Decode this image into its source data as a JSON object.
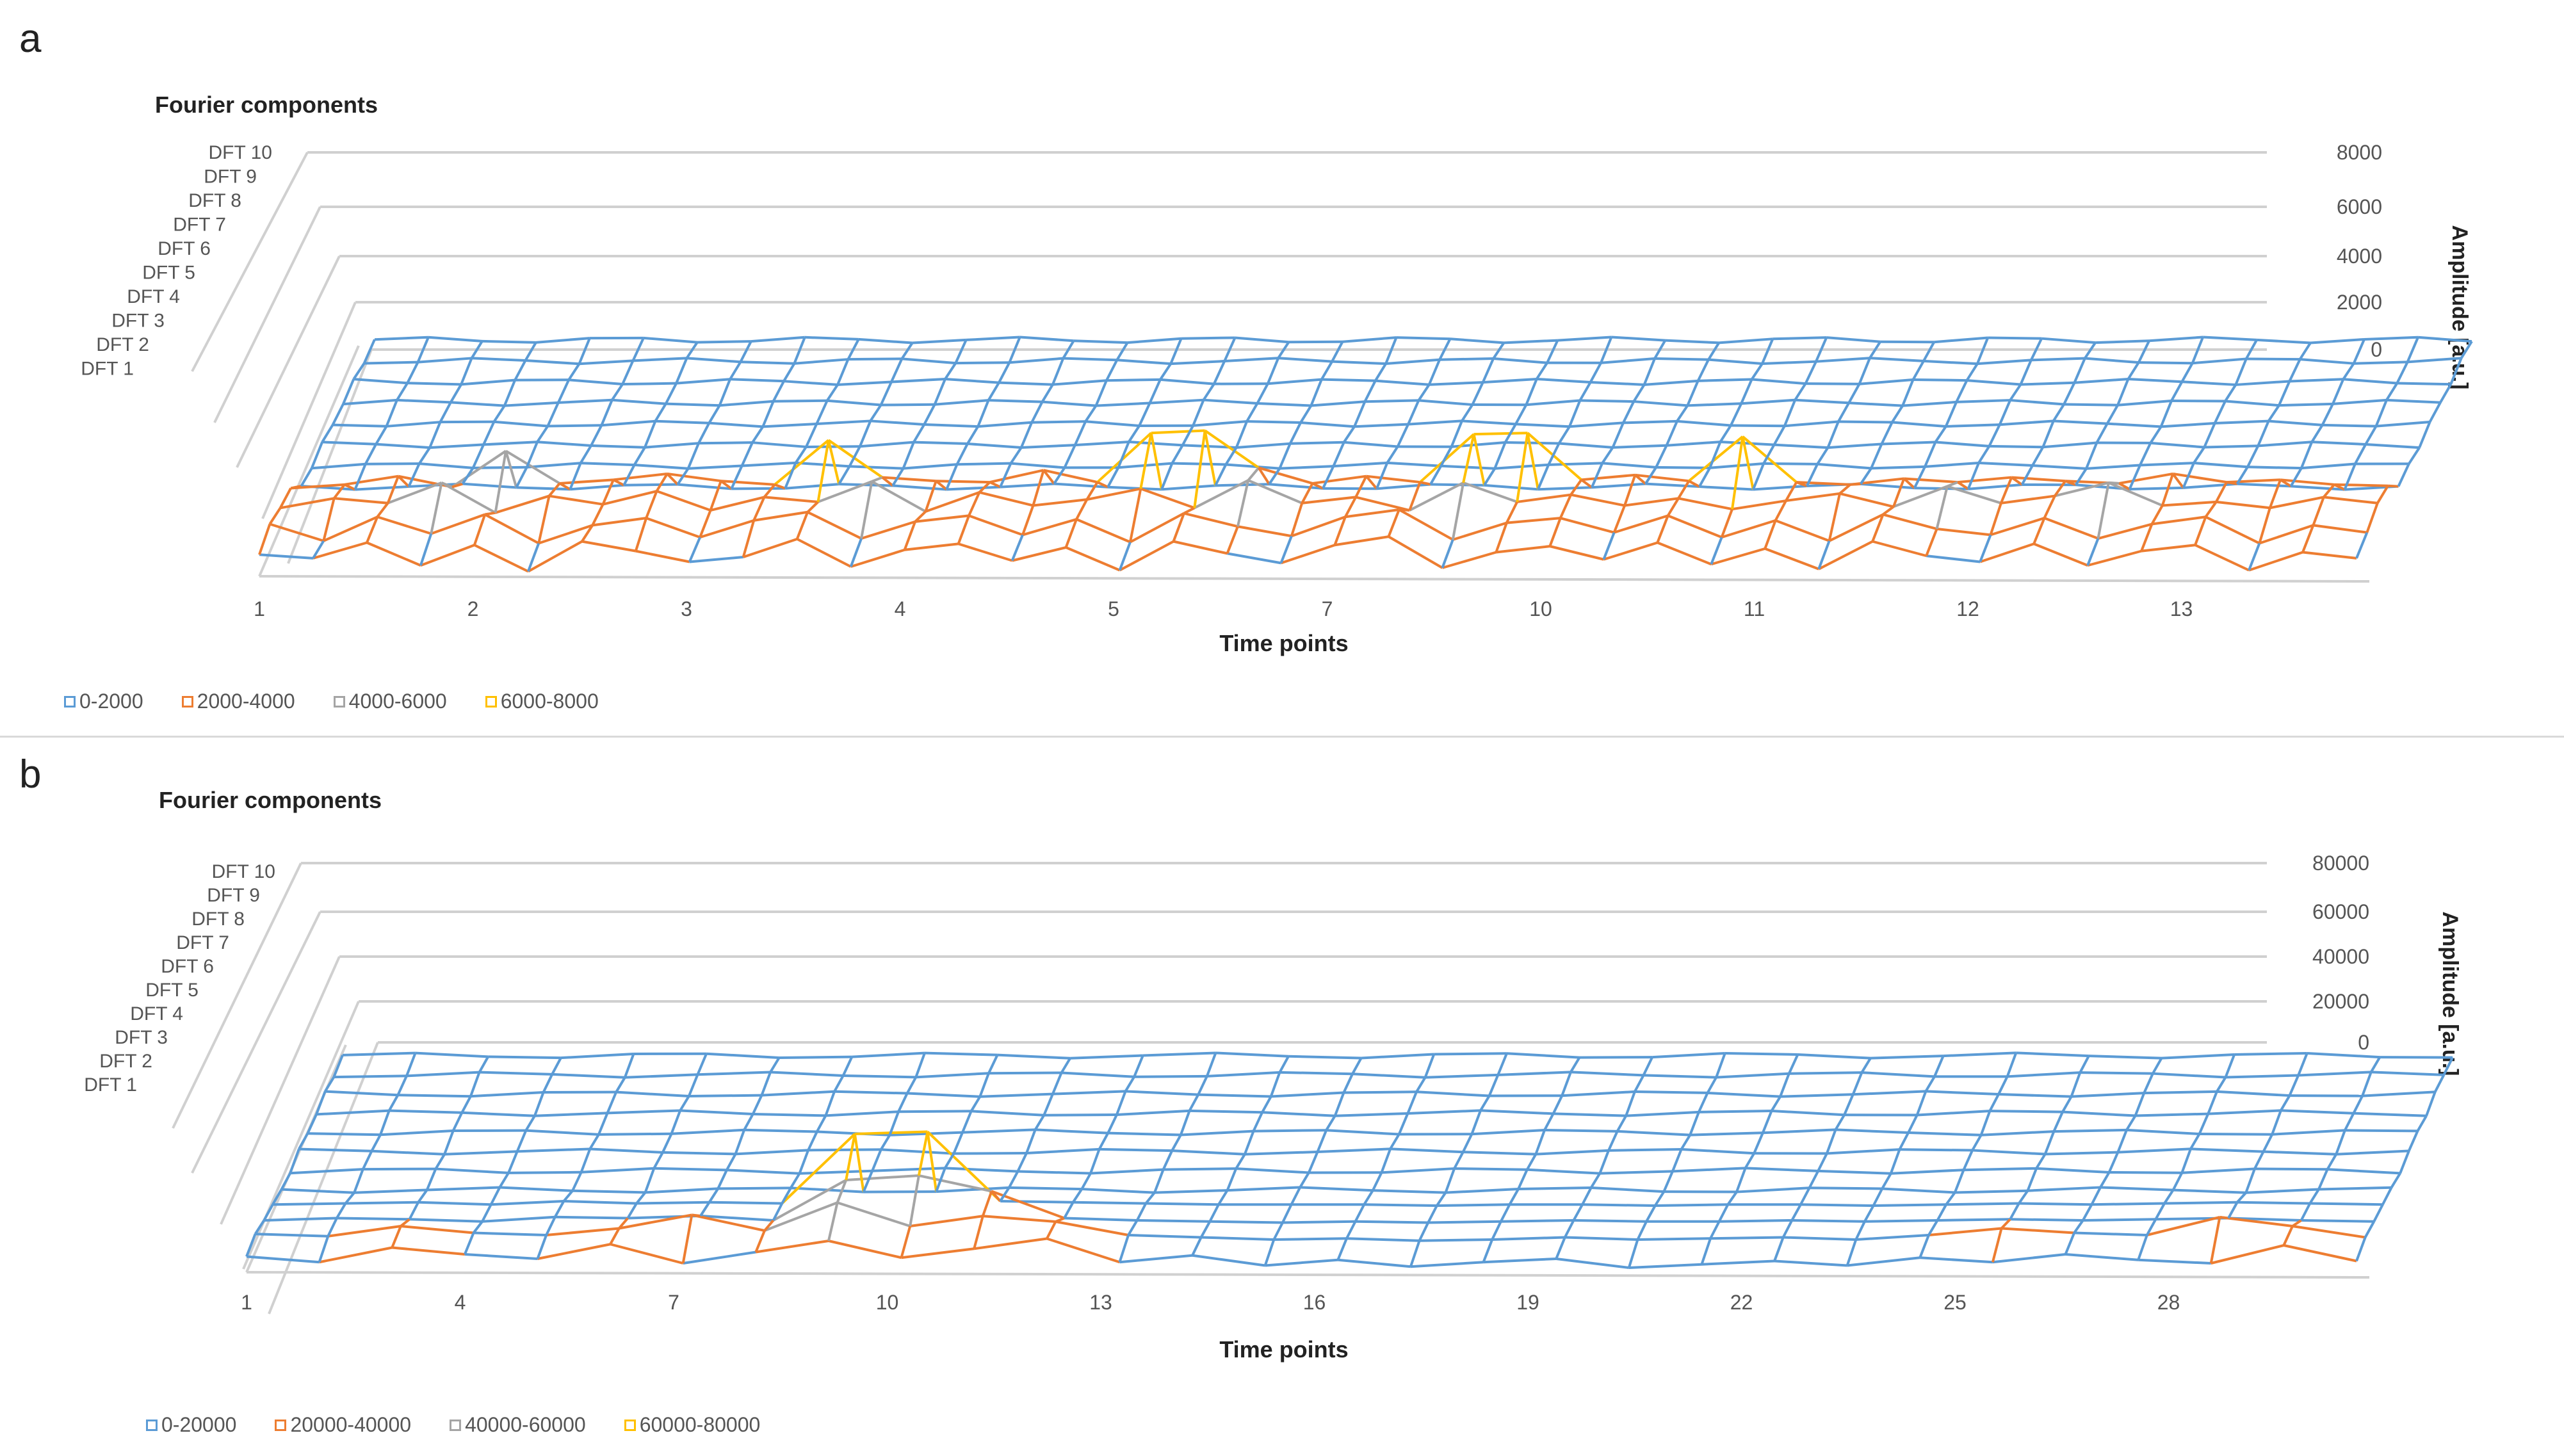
{
  "panels": [
    {
      "letter": "a"
    },
    {
      "letter": "b"
    }
  ],
  "chart_data": [
    {
      "type": "surface",
      "title": "Fourier components",
      "xlabel": "Time points",
      "zlabel": "Amplitude [a.u.]",
      "x_tick_labels": [
        "1",
        "2",
        "3",
        "4",
        "5",
        "7",
        "10",
        "11",
        "12",
        "13"
      ],
      "y_categories": [
        "DFT 10",
        "DFT 9",
        "DFT 8",
        "DFT 7",
        "DFT 6",
        "DFT 5",
        "DFT 4",
        "DFT 3",
        "DFT 2",
        "DFT 1"
      ],
      "z_tick_labels": [
        "8000",
        "6000",
        "4000",
        "2000",
        "0"
      ],
      "zlim": [
        0,
        8000
      ],
      "n_time_points": 40,
      "legend": [
        "0-2000",
        "2000-4000",
        "4000-6000",
        "6000-8000"
      ],
      "band_colors": [
        "#5b9bd5",
        "#ed7d31",
        "#a5a5a5",
        "#ffc000"
      ],
      "dft1_values": [
        1800,
        1500,
        2800,
        900,
        2600,
        400,
        2900,
        2100,
        1200,
        1600,
        3100,
        800,
        2200,
        2700,
        1300,
        2400,
        500,
        2900,
        1900,
        1100,
        2600,
        3300,
        700,
        2000,
        2500,
        1400,
        2800,
        1000,
        2300,
        600,
        2900,
        1700,
        1200,
        2700,
        900,
        2100,
        2600,
        500,
        2000,
        1500
      ],
      "dft2_values": [
        2600,
        1200,
        3200,
        1800,
        3400,
        1000,
        2500,
        3100,
        1500,
        2900,
        3600,
        1400,
        2800,
        3300,
        1700,
        3000,
        1100,
        3500,
        2400,
        1600,
        3200,
        3800,
        1300,
        2700,
        3100,
        1900,
        3300,
        1500,
        2900,
        1200,
        3400,
        2200,
        1700,
        3100,
        1400,
        2600,
        3200,
        1000,
        2500,
        1900
      ],
      "dft3_values": [
        2200,
        3000,
        2600,
        4300,
        1800,
        3200,
        2500,
        3600,
        2000,
        3100,
        2700,
        4400,
        1900,
        3500,
        2400,
        2900,
        3800,
        2200,
        4500,
        2600,
        3100,
        2000,
        4300,
        2700,
        3300,
        2400,
        3000,
        2100,
        2800,
        3400,
        2300,
        4000,
        2600,
        3200,
        4300,
        2400,
        2700,
        2200,
        3100,
        2600
      ],
      "peak_values": [
        2100,
        2400,
        3100,
        2200,
        5200,
        2500,
        2800,
        3300,
        2700,
        2400,
        6100,
        3000,
        2700,
        2600,
        3600,
        2600,
        6700,
        6900,
        3800,
        2500,
        3100,
        2600,
        6600,
        6700,
        2800,
        3200,
        2700,
        6400,
        2600,
        2400,
        2900,
        2600,
        3000,
        2700,
        2500,
        3300,
        2600,
        2800,
        2400,
        2300
      ]
    },
    {
      "type": "surface",
      "title": "Fourier components",
      "xlabel": "Time points",
      "zlabel": "Amplitude [a.u.]",
      "x_tick_labels": [
        "1",
        "4",
        "7",
        "10",
        "13",
        "16",
        "19",
        "22",
        "25",
        "28"
      ],
      "y_categories": [
        "DFT 10",
        "DFT 9",
        "DFT 8",
        "DFT 7",
        "DFT 6",
        "DFT 5",
        "DFT 4",
        "DFT 3",
        "DFT 2",
        "DFT 1"
      ],
      "z_tick_labels": [
        "80000",
        "60000",
        "40000",
        "20000",
        "0"
      ],
      "zlim": [
        0,
        80000
      ],
      "n_time_points": 30,
      "legend": [
        "0-20000",
        "20000-40000",
        "40000-60000",
        "60000-80000"
      ],
      "band_colors": [
        "#5b9bd5",
        "#ed7d31",
        "#a5a5a5",
        "#ffc000"
      ],
      "dft1_values": [
        14000,
        9000,
        22000,
        16000,
        12000,
        25000,
        8000,
        18000,
        28000,
        13000,
        21000,
        30000,
        9000,
        15000,
        6000,
        11000,
        5000,
        9000,
        12000,
        4000,
        7000,
        10000,
        6000,
        13000,
        9000,
        16000,
        11000,
        8000,
        24000,
        10000
      ],
      "dft2_values": [
        17000,
        15000,
        24000,
        18000,
        16000,
        22000,
        34000,
        20000,
        45000,
        24000,
        33000,
        28000,
        16000,
        14000,
        12000,
        13000,
        11000,
        12000,
        14000,
        12000,
        13000,
        14000,
        12000,
        16000,
        22000,
        18000,
        16000,
        32000,
        24000,
        14000
      ],
      "dft3_values": [
        12000,
        14000,
        13000,
        11000,
        15000,
        14000,
        16000,
        12000,
        48000,
        52000,
        38000,
        14000,
        12000,
        11000,
        10000,
        11000,
        10000,
        11000,
        12000,
        11000,
        11000,
        12000,
        11000,
        12000,
        13000,
        12000,
        13000,
        14000,
        12000,
        11000
      ],
      "peak_values": [
        9000,
        10000,
        11000,
        9000,
        12000,
        10000,
        11000,
        10000,
        72000,
        74000,
        12000,
        11000,
        10000,
        9000,
        9000,
        9000,
        8000,
        9000,
        9000,
        8000,
        9000,
        9000,
        8000,
        9000,
        10000,
        9000,
        10000,
        11000,
        10000,
        9000
      ]
    }
  ]
}
